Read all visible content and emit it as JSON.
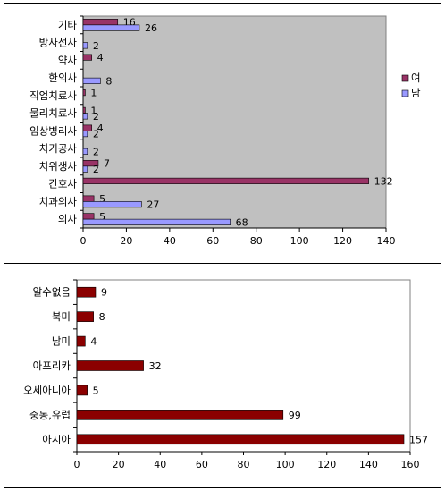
{
  "chart_data": [
    {
      "type": "bar",
      "orientation": "horizontal",
      "categories": [
        "기타",
        "방사선사",
        "약사",
        "한의사",
        "직업치료사",
        "물리치료사",
        "임상병리사",
        "치기공사",
        "치위생사",
        "간호사",
        "치과의사",
        "의사"
      ],
      "series": [
        {
          "name": "여",
          "color": "#993366",
          "values": [
            16,
            null,
            4,
            null,
            1,
            1,
            4,
            null,
            7,
            132,
            5,
            5
          ]
        },
        {
          "name": "남",
          "color": "#9999ff",
          "values": [
            26,
            2,
            null,
            8,
            null,
            2,
            2,
            2,
            2,
            null,
            27,
            68
          ]
        }
      ],
      "xlim": [
        0,
        140
      ],
      "xticks": [
        "0",
        "20",
        "40",
        "60",
        "80",
        "100",
        "120",
        "140"
      ],
      "plot_background": "#c0c0c0",
      "grid": false,
      "legend_position": "right",
      "data_labels": true
    },
    {
      "type": "bar",
      "orientation": "horizontal",
      "categories": [
        "알수없음",
        "북미",
        "남미",
        "아프리카",
        "오세아니아",
        "중동,유럽",
        "아시아"
      ],
      "series": [
        {
          "color": "#8b0000",
          "values": [
            9,
            8,
            4,
            32,
            5,
            99,
            157
          ]
        }
      ],
      "xlim": [
        0,
        160
      ],
      "xticks": [
        "0",
        "20",
        "40",
        "60",
        "80",
        "100",
        "120",
        "140",
        "160"
      ],
      "plot_background": "#ffffff",
      "grid": false,
      "data_labels": true
    }
  ]
}
